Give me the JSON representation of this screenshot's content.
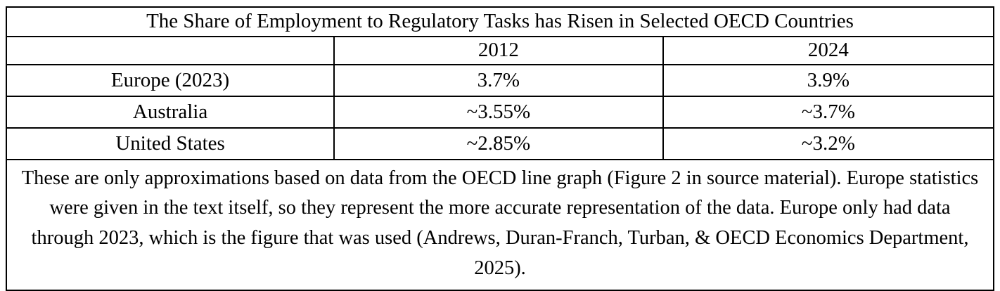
{
  "chart_data": {
    "type": "table",
    "title": "The Share of Employment to Regulatory Tasks has Risen in Selected OECD Countries",
    "columns": [
      "",
      "2012",
      "2024"
    ],
    "rows": [
      {
        "label": "Europe (2023)",
        "y2012": "3.7%",
        "y2024": "3.9%"
      },
      {
        "label": "Australia",
        "y2012": "~3.55%",
        "y2024": "~3.7%"
      },
      {
        "label": "United States",
        "y2012": "~2.85%",
        "y2024": "~3.2%"
      }
    ],
    "note": "These are only approximations based on data from the OECD line graph (Figure 2 in source material). Europe statistics were given in the text itself, so they represent the more accurate representation of the data. Europe only had data through 2023, which is the figure that was used (Andrews, Duran-Franch, Turban, & OECD Economics Department, 2025).",
    "layout": {
      "grid": "on",
      "border_color": "#000000",
      "background_color": "#ffffff",
      "text_color": "#000000"
    }
  }
}
